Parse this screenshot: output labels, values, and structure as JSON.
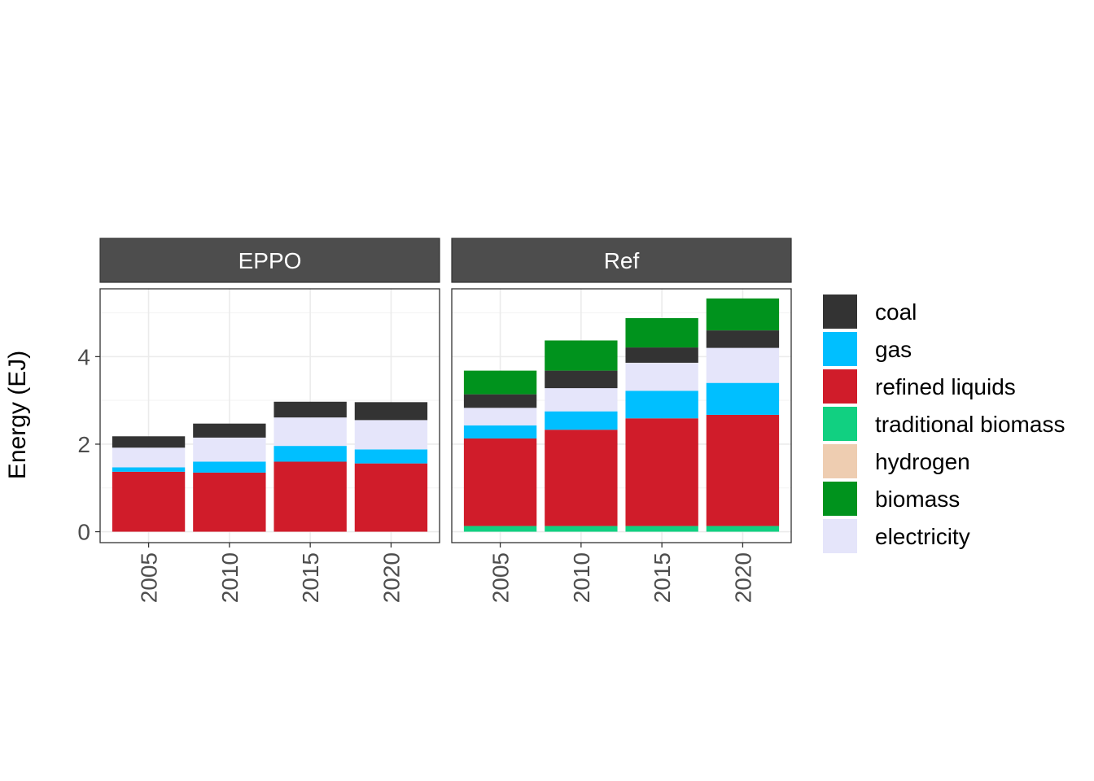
{
  "chart_data": {
    "type": "bar",
    "stacked": true,
    "ylabel": "Energy (EJ)",
    "xlabel": "",
    "ylim": [
      -0.25,
      5.55
    ],
    "yticks": [
      0,
      2,
      4
    ],
    "categories": [
      "2005",
      "2010",
      "2015",
      "2020"
    ],
    "facets": [
      {
        "name": "EPPO",
        "series": [
          {
            "name": "traditional biomass",
            "values": [
              0,
              0,
              0,
              0
            ]
          },
          {
            "name": "hydrogen",
            "values": [
              0,
              0,
              0,
              0
            ]
          },
          {
            "name": "refined liquids",
            "values": [
              1.37,
              1.35,
              1.6,
              1.56
            ]
          },
          {
            "name": "gas",
            "values": [
              0.1,
              0.25,
              0.36,
              0.32
            ]
          },
          {
            "name": "electricity",
            "values": [
              0.45,
              0.55,
              0.65,
              0.67
            ]
          },
          {
            "name": "coal",
            "values": [
              0.26,
              0.32,
              0.36,
              0.41
            ]
          },
          {
            "name": "biomass",
            "values": [
              0,
              0,
              0,
              0
            ]
          }
        ]
      },
      {
        "name": "Ref",
        "series": [
          {
            "name": "traditional biomass",
            "values": [
              0.13,
              0.13,
              0.13,
              0.13
            ]
          },
          {
            "name": "hydrogen",
            "values": [
              0,
              0,
              0,
              0
            ]
          },
          {
            "name": "refined liquids",
            "values": [
              2.0,
              2.2,
              2.46,
              2.54
            ]
          },
          {
            "name": "gas",
            "values": [
              0.3,
              0.42,
              0.63,
              0.73
            ]
          },
          {
            "name": "electricity",
            "values": [
              0.4,
              0.53,
              0.64,
              0.8
            ]
          },
          {
            "name": "coal",
            "values": [
              0.31,
              0.4,
              0.35,
              0.4
            ]
          },
          {
            "name": "biomass",
            "values": [
              0.54,
              0.69,
              0.67,
              0.73
            ]
          }
        ]
      }
    ],
    "legend": {
      "position": "right",
      "entries": [
        {
          "name": "coal",
          "color": "#333333"
        },
        {
          "name": "gas",
          "color": "#00bfff"
        },
        {
          "name": "refined liquids",
          "color": "#d01c2a"
        },
        {
          "name": "traditional biomass",
          "color": "#11d081"
        },
        {
          "name": "hydrogen",
          "color": "#eecdb1"
        },
        {
          "name": "biomass",
          "color": "#00931d"
        },
        {
          "name": "electricity",
          "color": "#e5e5fa"
        }
      ]
    },
    "grid": true,
    "theme": {
      "strip_fill": "#4d4d4d",
      "strip_text": "#ffffff",
      "grid_color": "#ebebeb",
      "tick_text": "#4d4d4d"
    }
  }
}
